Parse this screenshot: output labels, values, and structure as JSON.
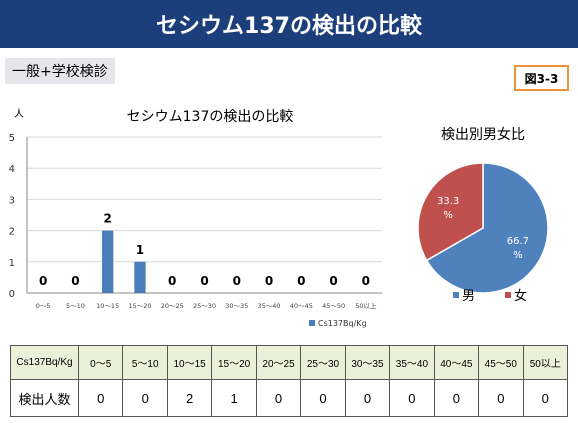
{
  "header": {
    "title": "セシウム137の検出の比較"
  },
  "subtitle": "一般+学校検診",
  "figure_number": "図3-3",
  "chart_data": [
    {
      "type": "bar",
      "title": "セシウム137の検出の比較",
      "ylabel": "人",
      "ylim": [
        0,
        5
      ],
      "yticks": [
        0,
        1,
        2,
        3,
        4,
        5
      ],
      "categories": [
        "0～5",
        "5～10",
        "10～15",
        "15～20",
        "20～25",
        "25～30",
        "30～35",
        "35～40",
        "40～45",
        "45～50",
        "50以上"
      ],
      "series": [
        {
          "name": "Cs137Bq/Kg",
          "values": [
            0,
            0,
            2,
            1,
            0,
            0,
            0,
            0,
            0,
            0,
            0
          ],
          "color": "#4a7ebb"
        }
      ],
      "legend_position": "bottom-right",
      "grid": true
    },
    {
      "type": "pie",
      "title": "検出別男女比",
      "slices": [
        {
          "label": "男",
          "value": 66.7,
          "display": "66.7\n%",
          "color": "#4f81bd"
        },
        {
          "label": "女",
          "value": 33.3,
          "display": "33.3\n%",
          "color": "#c0504d"
        }
      ],
      "legend_position": "bottom"
    }
  ],
  "table": {
    "header_label": "Cs137Bq/Kg",
    "row_label": "検出人数",
    "columns": [
      "0～5",
      "5～10",
      "10～15",
      "15～20",
      "20～25",
      "25～30",
      "30～35",
      "35～40",
      "40～45",
      "45～50",
      "50以上"
    ],
    "values": [
      "0",
      "0",
      "2",
      "1",
      "0",
      "0",
      "0",
      "0",
      "0",
      "0",
      "0"
    ]
  }
}
